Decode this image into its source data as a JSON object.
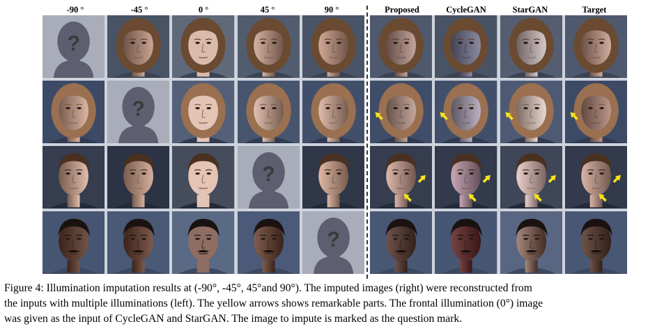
{
  "column_headers": {
    "left": [
      "-90 °",
      "-45 °",
      "0 °",
      "45 °",
      "90 °"
    ],
    "right": [
      "Proposed",
      "CycleGAN",
      "StarGAN",
      "Target"
    ]
  },
  "rows": [
    {
      "subject": "woman-long-hair",
      "skin": "#c99a84",
      "hair": "#6a4a30",
      "bg": "#4a5468",
      "missing_column": 0,
      "input_light": [
        0.0,
        0.55,
        1.0,
        0.75,
        0.6
      ],
      "output_light": [
        0.7,
        0.55,
        0.8,
        0.7
      ],
      "output_tint": [
        "#b48c80",
        "#7c7a98",
        "#c8b4b4",
        "#c49482"
      ],
      "arrows": []
    },
    {
      "subject": "woman-short-hair",
      "skin": "#d6a892",
      "hair": "#9a7050",
      "bg": "#3c4a66",
      "missing_column": 1,
      "input_light": [
        0.6,
        0.0,
        1.0,
        0.8,
        0.7
      ],
      "output_light": [
        0.65,
        0.7,
        0.9,
        0.6
      ],
      "output_tint": [
        "#b89484",
        "#a89cb0",
        "#e0c4b8",
        "#b08474"
      ],
      "arrows": [
        "left-cheek"
      ]
    },
    {
      "subject": "man-short-hair",
      "skin": "#d8a890",
      "hair": "#4a3020",
      "bg": "#2c3446",
      "missing_column": 3,
      "input_light": [
        0.75,
        0.55,
        1.0,
        0.0,
        0.65
      ],
      "output_light": [
        0.75,
        0.7,
        0.9,
        0.7
      ],
      "output_tint": [
        "#d0a090",
        "#b890a0",
        "#e0b8b0",
        "#d0a090"
      ],
      "arrows": [
        "right-cheek",
        "chin"
      ]
    },
    {
      "subject": "man-mustache",
      "skin": "#6a4030",
      "hair": "#1a1210",
      "bg": "#4a5a78",
      "missing_column": 4,
      "input_light": [
        0.4,
        0.55,
        0.9,
        0.6,
        0.0
      ],
      "output_light": [
        0.5,
        0.45,
        0.85,
        0.5
      ],
      "output_tint": [
        "#5a3a30",
        "#6a2828",
        "#7a5040",
        "#5a3a2c"
      ],
      "arrows": []
    }
  ],
  "colors": {
    "placeholder_bg": "#a9acb9",
    "placeholder_head": "#5d5f70",
    "question_mark": "#3a3a3a",
    "arrow": "#f5e41a"
  },
  "placeholder_symbol": "?",
  "caption": {
    "lines": [
      "Figure 4: Illumination imputation results at (-90°, -45°, 45°and 90°).  The imputed images (right) were reconstructed from",
      "the inputs with multiple illuminations (left). The yellow arrows shows remarkable parts. The frontal illumination (0°) image",
      "was given as the input of CycleGAN and StarGAN. The image to impute is marked as the question mark."
    ]
  }
}
